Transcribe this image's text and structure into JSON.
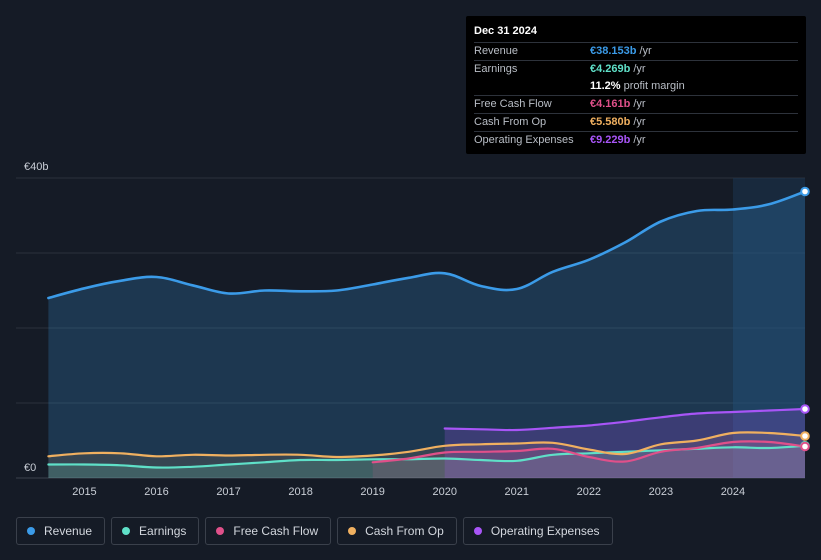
{
  "tooltip": {
    "date": "Dec 31 2024",
    "rows": [
      {
        "label": "Revenue",
        "value": "€38.153b",
        "unit": "/yr",
        "color": "#3b9be8"
      },
      {
        "label": "Earnings",
        "value": "€4.269b",
        "unit": "/yr",
        "color": "#5fe0c8"
      },
      {
        "label": "",
        "value": "11.2%",
        "unit": "profit margin",
        "color": "#ffffff"
      },
      {
        "label": "Free Cash Flow",
        "value": "€4.161b",
        "unit": "/yr",
        "color": "#e0508a"
      },
      {
        "label": "Cash From Op",
        "value": "€5.580b",
        "unit": "/yr",
        "color": "#f0b060"
      },
      {
        "label": "Operating Expenses",
        "value": "€9.229b",
        "unit": "/yr",
        "color": "#a855f7"
      }
    ]
  },
  "legend": [
    {
      "label": "Revenue",
      "color": "#3b9be8"
    },
    {
      "label": "Earnings",
      "color": "#5fe0c8"
    },
    {
      "label": "Free Cash Flow",
      "color": "#e0508a"
    },
    {
      "label": "Cash From Op",
      "color": "#f0b060"
    },
    {
      "label": "Operating Expenses",
      "color": "#a855f7"
    }
  ],
  "chart_data": {
    "type": "area",
    "title": "",
    "ylabel": "",
    "xlabel": "",
    "ylim": [
      0,
      40
    ],
    "y_tick_labels": [
      {
        "value": 40,
        "label": "€40b"
      },
      {
        "value": 0,
        "label": "€0"
      }
    ],
    "x_ticks": [
      "2015",
      "2016",
      "2017",
      "2018",
      "2019",
      "2020",
      "2021",
      "2022",
      "2023",
      "2024"
    ],
    "xlim": [
      2014.5,
      2025.0
    ],
    "highlight_start": 2024.0,
    "series": [
      {
        "name": "Revenue",
        "color": "#3b9be8",
        "fill": true,
        "x": [
          2014.5,
          2015.0,
          2015.5,
          2016.0,
          2016.5,
          2017.0,
          2017.5,
          2018.0,
          2018.5,
          2019.0,
          2019.5,
          2020.0,
          2020.5,
          2021.0,
          2021.5,
          2022.0,
          2022.5,
          2023.0,
          2023.5,
          2024.0,
          2024.5,
          2025.0
        ],
        "values": [
          24.0,
          25.3,
          26.3,
          26.8,
          25.7,
          24.6,
          25.0,
          24.9,
          25.0,
          25.8,
          26.7,
          27.3,
          25.6,
          25.2,
          27.5,
          29.1,
          31.4,
          34.2,
          35.6,
          35.8,
          36.5,
          38.2
        ]
      },
      {
        "name": "Earnings",
        "color": "#5fe0c8",
        "fill": true,
        "x": [
          2014.5,
          2015.0,
          2015.5,
          2016.0,
          2016.5,
          2017.0,
          2017.5,
          2018.0,
          2018.5,
          2019.0,
          2019.5,
          2020.0,
          2020.5,
          2021.0,
          2021.5,
          2022.0,
          2022.5,
          2023.0,
          2023.5,
          2024.0,
          2024.5,
          2025.0
        ],
        "values": [
          1.8,
          1.8,
          1.7,
          1.4,
          1.5,
          1.8,
          2.1,
          2.4,
          2.4,
          2.5,
          2.5,
          2.6,
          2.4,
          2.3,
          3.1,
          3.3,
          3.5,
          3.7,
          3.9,
          4.1,
          4.0,
          4.3
        ]
      },
      {
        "name": "Free Cash Flow",
        "color": "#e0508a",
        "fill": true,
        "x": [
          2019.0,
          2019.5,
          2020.0,
          2020.5,
          2021.0,
          2021.5,
          2022.0,
          2022.5,
          2023.0,
          2023.5,
          2024.0,
          2024.5,
          2025.0
        ],
        "values": [
          2.1,
          2.6,
          3.4,
          3.5,
          3.6,
          3.9,
          2.8,
          2.2,
          3.5,
          4.0,
          4.8,
          4.8,
          4.2
        ]
      },
      {
        "name": "Cash From Op",
        "color": "#f0b060",
        "fill": true,
        "x": [
          2014.5,
          2015.0,
          2015.5,
          2016.0,
          2016.5,
          2017.0,
          2017.5,
          2018.0,
          2018.5,
          2019.0,
          2019.5,
          2020.0,
          2020.5,
          2021.0,
          2021.5,
          2022.0,
          2022.5,
          2023.0,
          2023.5,
          2024.0,
          2024.5,
          2025.0
        ],
        "values": [
          2.9,
          3.3,
          3.3,
          2.9,
          3.1,
          3.0,
          3.1,
          3.1,
          2.8,
          3.0,
          3.5,
          4.3,
          4.5,
          4.6,
          4.7,
          3.8,
          3.2,
          4.5,
          5.0,
          6.0,
          6.0,
          5.6
        ]
      },
      {
        "name": "Operating Expenses",
        "color": "#a855f7",
        "fill": true,
        "x": [
          2020.0,
          2020.5,
          2021.0,
          2021.5,
          2022.0,
          2022.5,
          2023.0,
          2023.5,
          2024.0,
          2024.5,
          2025.0
        ],
        "values": [
          6.6,
          6.5,
          6.4,
          6.7,
          7.0,
          7.5,
          8.1,
          8.6,
          8.8,
          9.0,
          9.2
        ]
      }
    ]
  }
}
